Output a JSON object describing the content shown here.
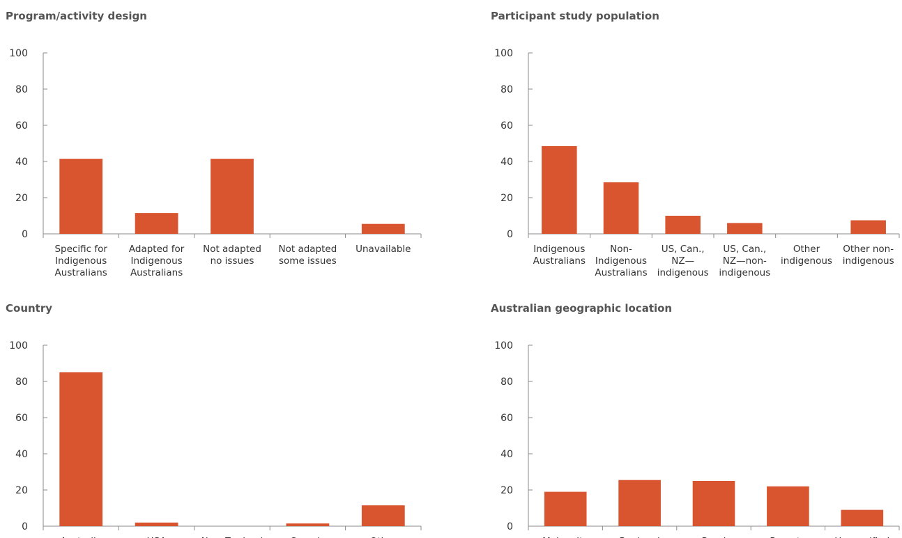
{
  "colors": {
    "bar": "#D95530",
    "axis": "#8a8a8a",
    "text": "#333333",
    "title": "#555555"
  },
  "chart_data": [
    {
      "type": "bar",
      "title": "Program/activity design",
      "categories": [
        [
          "Specific for",
          "Indigenous",
          "Australians"
        ],
        [
          "Adapted for",
          "Indigenous",
          "Australians"
        ],
        [
          "Not adapted",
          "no issues"
        ],
        [
          "Not adapted",
          "some issues"
        ],
        [
          "Unavailable"
        ]
      ],
      "values": [
        41.5,
        11.5,
        41.5,
        0,
        5.5
      ],
      "ylim": [
        0,
        100
      ],
      "yticks": [
        0,
        20,
        40,
        60,
        80,
        100
      ],
      "grid": false
    },
    {
      "type": "bar",
      "title": "Participant study population",
      "categories": [
        [
          "Indigenous",
          "Australians"
        ],
        [
          "Non-",
          "Indigenous",
          "Australians"
        ],
        [
          "US, Can.,",
          "NZ—",
          "indigenous"
        ],
        [
          "US, Can.,",
          "NZ—non-",
          "indigenous"
        ],
        [
          "Other",
          "indigenous"
        ],
        [
          "Other non-",
          "indigenous"
        ]
      ],
      "values": [
        48.5,
        28.5,
        10,
        6,
        0,
        7.5
      ],
      "ylim": [
        0,
        100
      ],
      "yticks": [
        0,
        20,
        40,
        60,
        80,
        100
      ],
      "grid": false
    },
    {
      "type": "bar",
      "title": "Country",
      "categories": [
        [
          "Australia"
        ],
        [
          "USA"
        ],
        [
          "New Zealand"
        ],
        [
          "Canada"
        ],
        [
          "Other"
        ]
      ],
      "values": [
        85,
        2,
        0,
        1.5,
        11.5
      ],
      "ylim": [
        0,
        100
      ],
      "yticks": [
        0,
        20,
        40,
        60,
        80,
        100
      ],
      "grid": false
    },
    {
      "type": "bar",
      "title": "Australian geographic location",
      "categories": [
        [
          "Major city"
        ],
        [
          "Regional"
        ],
        [
          "Rural"
        ],
        [
          "Remote"
        ],
        [
          "Unspecified"
        ]
      ],
      "values": [
        19,
        25.5,
        25,
        22,
        9
      ],
      "ylim": [
        0,
        100
      ],
      "yticks": [
        0,
        20,
        40,
        60,
        80,
        100
      ],
      "grid": false
    }
  ]
}
